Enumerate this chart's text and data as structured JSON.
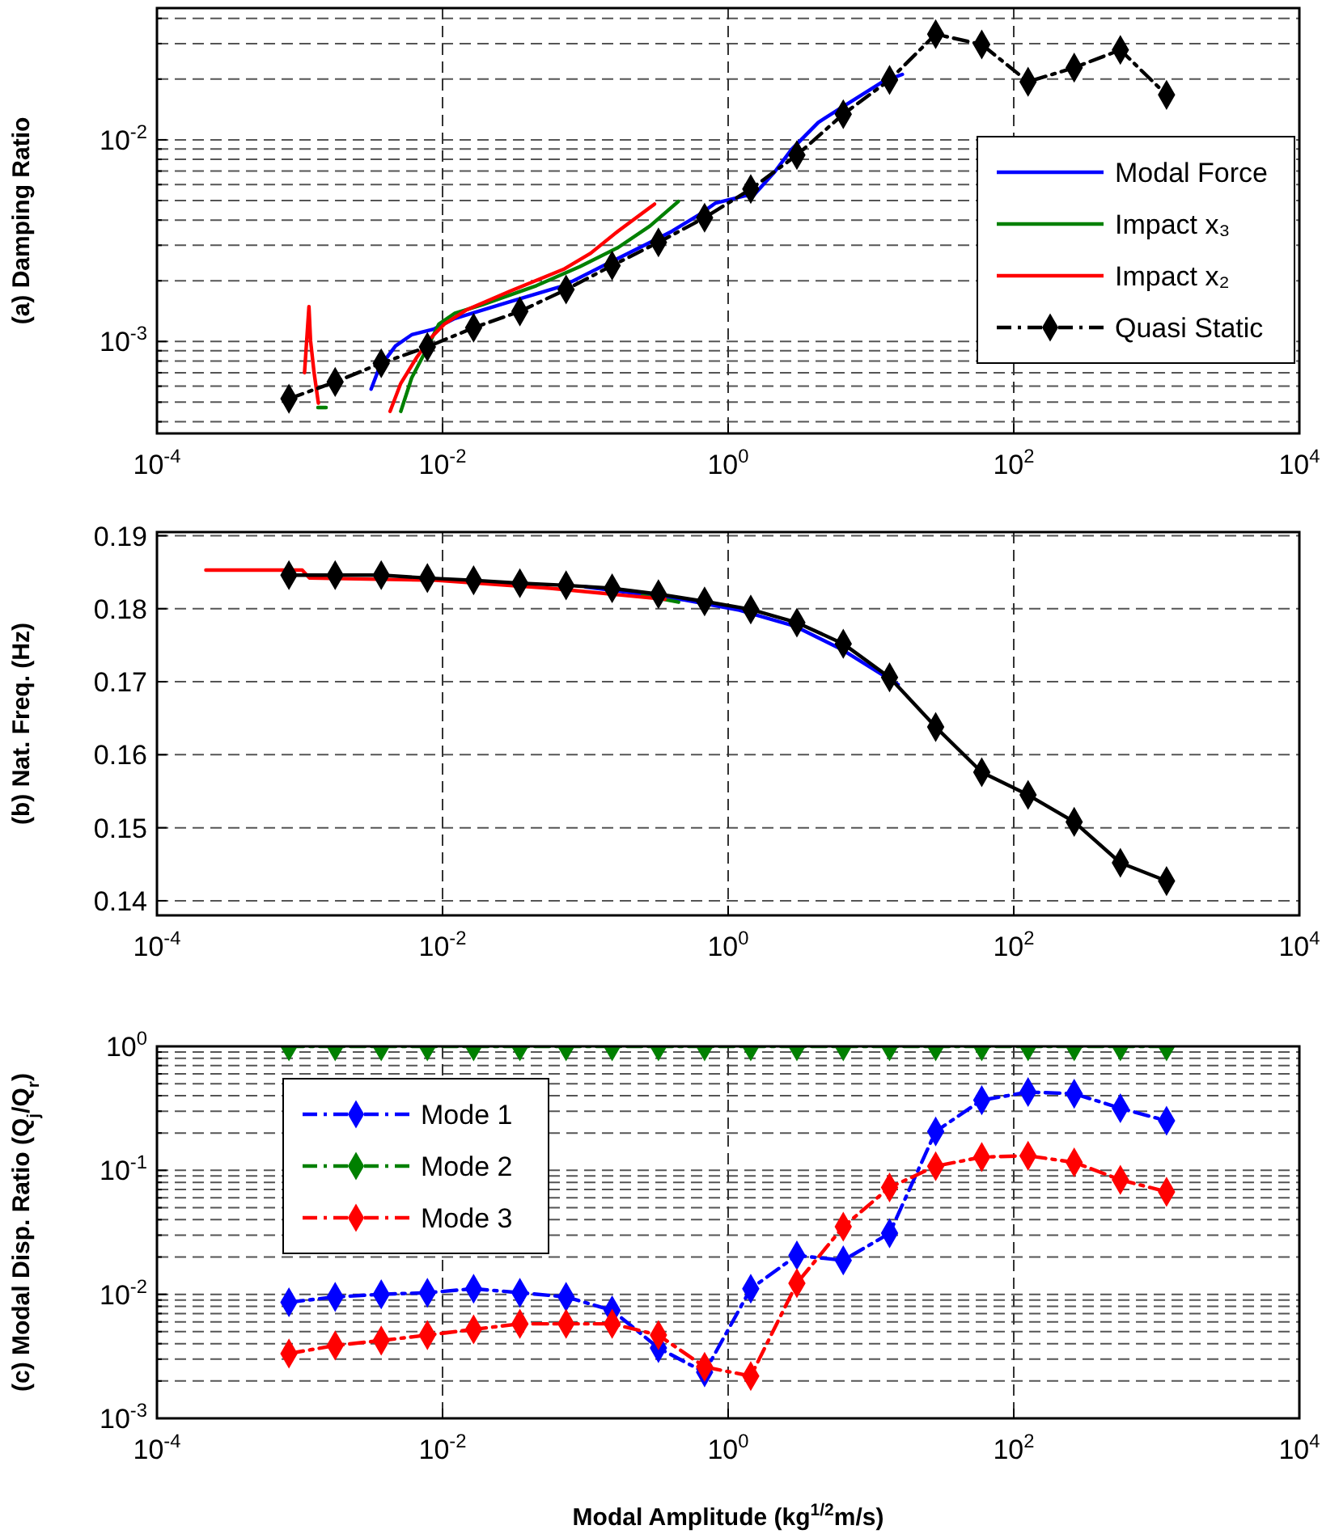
{
  "chart_data": [
    {
      "type": "line",
      "ylabel": "(a) Damping Ratio",
      "log": "xy",
      "grid": true,
      "legend": "right",
      "xlim": [
        0.0001,
        10000
      ],
      "xticks": [
        {
          "value": 0.0001,
          "label": "10$^{-4}$"
        },
        {
          "value": 0.01,
          "label": "10$^{-2}$"
        },
        {
          "value": 1,
          "label": "10$^{0}$"
        },
        {
          "value": 100,
          "label": "10$^{2}$"
        },
        {
          "value": 10000,
          "label": "10$^{4}$"
        }
      ],
      "ylim": [
        0.00035,
        0.045
      ],
      "yticks": [
        {
          "value": 0.0004,
          "label": null
        },
        {
          "value": 0.0005,
          "label": null
        },
        {
          "value": 0.0006,
          "label": null
        },
        {
          "value": 0.0007,
          "label": null
        },
        {
          "value": 0.0008,
          "label": null
        },
        {
          "value": 0.0009,
          "label": null
        },
        {
          "value": 0.001,
          "label": "10$^{-3}$"
        },
        {
          "value": 0.002,
          "label": null
        },
        {
          "value": 0.003,
          "label": null
        },
        {
          "value": 0.004,
          "label": null
        },
        {
          "value": 0.005,
          "label": null
        },
        {
          "value": 0.006,
          "label": null
        },
        {
          "value": 0.007,
          "label": null
        },
        {
          "value": 0.008,
          "label": null
        },
        {
          "value": 0.009,
          "label": null
        },
        {
          "value": 0.01,
          "label": "10$^{-2}$"
        },
        {
          "value": 0.02,
          "label": null
        },
        {
          "value": 0.03,
          "label": null
        },
        {
          "value": 0.04,
          "label": null
        }
      ],
      "x": [
        0.00084,
        0.00177,
        0.00372,
        0.00783,
        0.0165,
        0.0348,
        0.0733,
        0.154,
        0.325,
        0.684,
        1.44,
        3.03,
        6.4,
        13.5,
        28.4,
        59.7,
        126,
        265,
        558,
        1175
      ],
      "series": [
        {
          "name": "Modal Force",
          "color": "#0000ff",
          "marker": "none",
          "line_style": "solid",
          "x": [
            0.00316,
            0.0036,
            0.00468,
            0.00608,
            0.00863,
            0.0122,
            0.0293,
            0.0703,
            0.141,
            0.284,
            0.404,
            0.625,
            0.817,
            1.31,
            1.5,
            2.13,
            2.77,
            4.28,
            6.08,
            12.2,
            16.6
          ],
          "values": [
            0.00058,
            0.00074,
            0.00095,
            0.00108,
            0.00115,
            0.0013,
            0.00157,
            0.00189,
            0.00242,
            0.0031,
            0.00352,
            0.00425,
            0.00486,
            0.00528,
            0.00528,
            0.00697,
            0.00893,
            0.0122,
            0.0143,
            0.0195,
            0.0211
          ]
        },
        {
          "name": "Impact x₃",
          "color": "#008000",
          "marker": "none",
          "line_style": "solid",
          "x": [
            0.00134,
            0.00153,
            null,
            0.0051,
            0.00608,
            0.00757,
            0.00942,
            0.0122,
            0.019,
            0.0454,
            0.0914,
            0.169,
            0.284,
            0.448
          ],
          "values": [
            0.00047,
            0.00047,
            null,
            0.00045,
            0.00066,
            0.00089,
            0.00122,
            0.00138,
            0.00152,
            0.00189,
            0.00235,
            0.00292,
            0.00374,
            0.00495
          ]
        },
        {
          "name": "Impact x₂",
          "color": "#ff0000",
          "marker": "none",
          "line_style": "solid",
          "x": [
            0.00108,
            0.00116,
            0.00119,
            0.00126,
            0.00135,
            null,
            0.00429,
            0.0051,
            0.00664,
            0.00826,
            0.0103,
            0.0146,
            0.0293,
            0.0703,
            0.109,
            0.169,
            0.305
          ],
          "values": [
            0.0007,
            0.00149,
            0.00101,
            0.0007,
            0.000495,
            null,
            0.00045,
            0.00062,
            0.00084,
            0.00104,
            0.00122,
            0.00143,
            0.00177,
            0.00228,
            0.00274,
            0.00352,
            0.0048
          ]
        },
        {
          "name": "Quasi Static",
          "color": "#000000",
          "marker": "diamond",
          "line_style": "dashed",
          "values": [
            0.00052,
            0.00063,
            0.00078,
            0.00094,
            0.00117,
            0.00141,
            0.00181,
            0.00238,
            0.0031,
            0.00411,
            0.0057,
            0.0084,
            0.0134,
            0.0198,
            0.0334,
            0.0297,
            0.0194,
            0.0228,
            0.0279,
            0.0167
          ]
        }
      ]
    },
    {
      "type": "line",
      "ylabel": "(b) Nat. Freq. (Hz)",
      "log": "x",
      "grid": true,
      "xlim": [
        0.0001,
        10000
      ],
      "xticks": [
        {
          "value": 0.0001,
          "label": "10$^{-4}$"
        },
        {
          "value": 0.01,
          "label": "10$^{-2}$"
        },
        {
          "value": 1,
          "label": "10$^{0}$"
        },
        {
          "value": 100,
          "label": "10$^{2}$"
        },
        {
          "value": 10000,
          "label": "10$^{4}$"
        }
      ],
      "ylim": [
        0.138,
        0.1905
      ],
      "yticks": [
        0.14,
        0.15,
        0.16,
        0.17,
        0.18,
        0.19
      ],
      "x": [
        0.00084,
        0.00177,
        0.00372,
        0.00783,
        0.0165,
        0.0348,
        0.0733,
        0.154,
        0.325,
        0.684,
        1.44,
        3.03,
        6.4,
        13.5,
        28.4,
        59.7,
        126,
        265,
        558,
        1175
      ],
      "series": [
        {
          "color": "#0000ff",
          "marker": "none",
          "line_style": "solid",
          "x": [
            0.1,
            0.5,
            1.2,
            2.94,
            6.14,
            15.5
          ],
          "values": [
            0.183,
            0.1812,
            0.1798,
            0.1776,
            0.1745,
            0.1696
          ]
        },
        {
          "color": "#008000",
          "marker": "none",
          "line_style": "solid",
          "x": [
            0.25,
            0.33,
            0.45
          ],
          "values": [
            0.1818,
            0.1814,
            0.1809
          ]
        },
        {
          "color": "#ff0000",
          "marker": "none",
          "line_style": "solid",
          "x": [
            0.00022,
            0.00104,
            0.00117,
            0.00893,
            0.0568,
            0.361
          ],
          "values": [
            0.1853,
            0.1853,
            0.1842,
            0.1839,
            0.1828,
            0.1813
          ]
        },
        {
          "color": "#000000",
          "marker": "diamond",
          "line_style": "solid",
          "values": [
            0.1846,
            0.1846,
            0.1846,
            0.1842,
            0.1839,
            0.1835,
            0.1832,
            0.1828,
            0.182,
            0.181,
            0.1799,
            0.1781,
            0.1752,
            0.1706,
            0.1638,
            0.1576,
            0.1545,
            0.1508,
            0.1452,
            0.1427
          ]
        }
      ]
    },
    {
      "type": "line",
      "ylabel": "(c) Modal Disp. Ratio (Q$_{j}$/Q$_{r}$)",
      "xlabel": "Modal Amplitude (kg$^{1/2}$m/s)",
      "log": "xy",
      "grid": true,
      "legend": "top left",
      "xlim": [
        0.0001,
        10000
      ],
      "xticks": [
        {
          "value": 0.0001,
          "label": "10$^{-4}$"
        },
        {
          "value": 0.01,
          "label": "10$^{-2}$"
        },
        {
          "value": 1,
          "label": "10$^{0}$"
        },
        {
          "value": 100,
          "label": "10$^{2}$"
        },
        {
          "value": 10000,
          "label": "10$^{4}$"
        }
      ],
      "ylim": [
        0.001,
        1
      ],
      "yticks": [
        {
          "value": 0.001,
          "label": "10$^{-3}$"
        },
        {
          "value": 0.002,
          "label": null
        },
        {
          "value": 0.003,
          "label": null
        },
        {
          "value": 0.004,
          "label": null
        },
        {
          "value": 0.005,
          "label": null
        },
        {
          "value": 0.006,
          "label": null
        },
        {
          "value": 0.007,
          "label": null
        },
        {
          "value": 0.008,
          "label": null
        },
        {
          "value": 0.009,
          "label": null
        },
        {
          "value": 0.01,
          "label": "10$^{-2}$"
        },
        {
          "value": 0.02,
          "label": null
        },
        {
          "value": 0.03,
          "label": null
        },
        {
          "value": 0.04,
          "label": null
        },
        {
          "value": 0.05,
          "label": null
        },
        {
          "value": 0.06,
          "label": null
        },
        {
          "value": 0.07,
          "label": null
        },
        {
          "value": 0.08,
          "label": null
        },
        {
          "value": 0.09,
          "label": null
        },
        {
          "value": 0.1,
          "label": "10$^{-1}$"
        },
        {
          "value": 0.2,
          "label": null
        },
        {
          "value": 0.3,
          "label": null
        },
        {
          "value": 0.4,
          "label": null
        },
        {
          "value": 0.5,
          "label": null
        },
        {
          "value": 0.6,
          "label": null
        },
        {
          "value": 0.7,
          "label": null
        },
        {
          "value": 0.8,
          "label": null
        },
        {
          "value": 0.9,
          "label": null
        },
        {
          "value": 1,
          "label": "10$^{0}$"
        }
      ],
      "x": [
        0.00084,
        0.00177,
        0.00372,
        0.00783,
        0.0165,
        0.0348,
        0.0733,
        0.154,
        0.325,
        0.684,
        1.44,
        3.03,
        6.4,
        13.5,
        28.4,
        59.7,
        126,
        265,
        558,
        1175
      ],
      "series": [
        {
          "name": "Mode 1",
          "color": "#0000ff",
          "marker": "diamond",
          "line_style": "dashed",
          "values": [
            0.00863,
            0.00953,
            0.01,
            0.0103,
            0.0111,
            0.0103,
            0.00953,
            0.00743,
            0.00369,
            0.00235,
            0.0111,
            0.0206,
            0.0188,
            0.0311,
            0.206,
            0.368,
            0.428,
            0.415,
            0.317,
            0.251
          ]
        },
        {
          "name": "Mode 2",
          "color": "#008000",
          "marker": "diamond",
          "line_style": "dashed",
          "values": [
            1,
            1,
            1,
            1,
            1,
            1,
            1,
            1,
            1,
            1,
            1,
            1,
            1,
            1,
            1,
            1,
            1,
            1,
            1,
            1
          ]
        },
        {
          "name": "Mode 3",
          "color": "#ff0000",
          "marker": "diamond",
          "line_style": "dashed",
          "values": [
            0.00333,
            0.00387,
            0.00424,
            0.00469,
            0.00522,
            0.00578,
            0.00578,
            0.00578,
            0.00469,
            0.0026,
            0.00219,
            0.0123,
            0.0351,
            0.0728,
            0.108,
            0.128,
            0.131,
            0.116,
            0.0838,
            0.0671
          ]
        }
      ]
    }
  ]
}
